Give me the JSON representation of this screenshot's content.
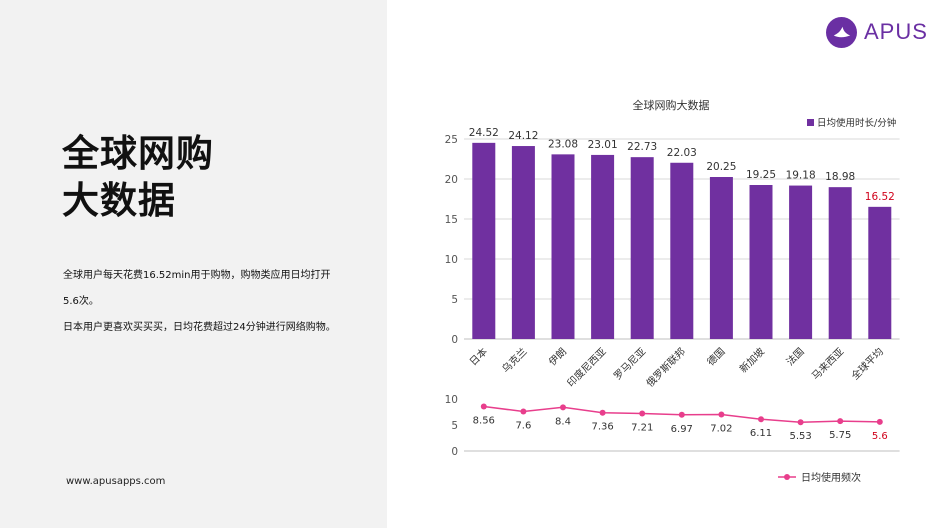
{
  "headline": {
    "line1": "全球网购",
    "line2": "大数据"
  },
  "description": {
    "line1": "全球用户每天花费16.52min用于购物，购物类应用日均打开",
    "line2": "5.6次。",
    "line3": "日本用户更喜欢买买买，日均花费超过24分钟进行网络购物。"
  },
  "website": "www.apusapps.com",
  "logo": {
    "text": "APUS",
    "color": "#6a2fa3"
  },
  "colors": {
    "bar": "#7030a0",
    "line": "#e83e8c",
    "highlight": "#d0021b",
    "axis_text": "#555555",
    "grid": "#d9d9d9"
  },
  "chart_data": [
    {
      "type": "bar",
      "title": "全球网购大数据",
      "categories": [
        "日本",
        "乌克兰",
        "伊朗",
        "印度尼西亚",
        "罗马尼亚",
        "俄罗斯联邦",
        "德国",
        "新加坡",
        "法国",
        "马来西亚",
        "全球平均"
      ],
      "series": [
        {
          "name": "日均使用时长/分钟",
          "values": [
            24.52,
            24.12,
            23.08,
            23.01,
            22.73,
            22.03,
            20.25,
            19.25,
            19.18,
            18.98,
            16.52
          ]
        }
      ],
      "ylim": [
        0,
        25
      ],
      "yticks": [
        0,
        5,
        10,
        15,
        20,
        25
      ],
      "grid": true,
      "legend_position": "top-right",
      "highlight_index": 10
    },
    {
      "type": "line",
      "categories": [
        "日本",
        "乌克兰",
        "伊朗",
        "印度尼西亚",
        "罗马尼亚",
        "俄罗斯联邦",
        "德国",
        "新加坡",
        "法国",
        "马来西亚",
        "全球平均"
      ],
      "series": [
        {
          "name": "日均使用频次",
          "values": [
            8.56,
            7.6,
            8.4,
            7.36,
            7.21,
            6.97,
            7.02,
            6.11,
            5.53,
            5.75,
            5.6
          ]
        }
      ],
      "ylim": [
        0,
        10
      ],
      "yticks": [
        0,
        5,
        10
      ],
      "grid": false,
      "legend_position": "bottom-right",
      "highlight_index": 10
    }
  ]
}
